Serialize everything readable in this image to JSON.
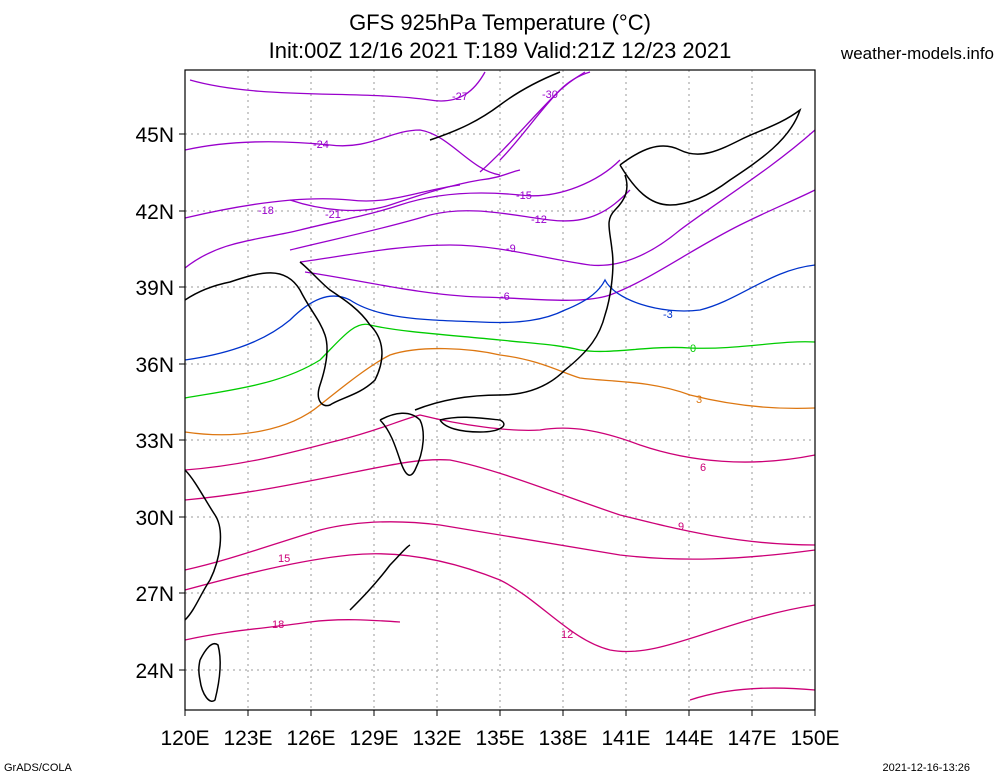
{
  "header": {
    "title_line1": "GFS 925hPa Temperature (°C)",
    "title_line2": "Init:00Z 12/16 2021 T:189 Valid:21Z 12/23 2021",
    "site": "weather-models.info"
  },
  "footer": {
    "left": "GrADS/COLA",
    "right": "2021-12-16-13:26"
  },
  "axes": {
    "lon_labels": [
      "120E",
      "123E",
      "126E",
      "129E",
      "132E",
      "135E",
      "138E",
      "141E",
      "144E",
      "147E",
      "150E"
    ],
    "lat_labels": [
      "24N",
      "27N",
      "30N",
      "33N",
      "36N",
      "39N",
      "42N",
      "45N"
    ]
  },
  "contour_labels": [
    {
      "text": "-30",
      "color": "#9900cc"
    },
    {
      "text": "-27",
      "color": "#9900cc"
    },
    {
      "text": "-24",
      "color": "#9900cc"
    },
    {
      "text": "-21",
      "color": "#9900cc"
    },
    {
      "text": "-18",
      "color": "#9900cc"
    },
    {
      "text": "-15",
      "color": "#9900cc"
    },
    {
      "text": "-12",
      "color": "#9900cc"
    },
    {
      "text": "-9",
      "color": "#9900cc"
    },
    {
      "text": "-6",
      "color": "#9900cc"
    },
    {
      "text": "-3",
      "color": "#0033cc"
    },
    {
      "text": "0",
      "color": "#00cc00"
    },
    {
      "text": "3",
      "color": "#dd7711"
    },
    {
      "text": "6",
      "color": "#cc0077"
    },
    {
      "text": "9",
      "color": "#cc0077"
    },
    {
      "text": "12",
      "color": "#cc0077"
    },
    {
      "text": "15",
      "color": "#cc0077"
    },
    {
      "text": "18",
      "color": "#cc0077"
    }
  ]
}
